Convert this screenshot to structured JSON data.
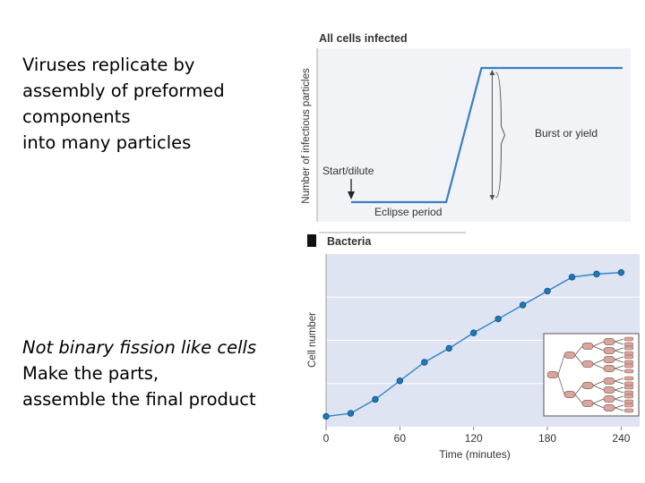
{
  "slide": {
    "text_top": [
      "Viruses replicate by",
      "assembly of preformed",
      "components",
      "into many particles"
    ],
    "text_bottom_italic": "Not binary fission like cells",
    "text_bottom": [
      "Make the parts,",
      "assemble the final product"
    ]
  },
  "chart_data": [
    {
      "type": "line",
      "title": "All cells infected",
      "ylabel": "Number of infectious particles",
      "annotations": {
        "start": "Start/dilute",
        "eclipse": "Eclipse period",
        "burst": "Burst or yield"
      },
      "series": [
        {
          "x": [
            0,
            0.35,
            0.48,
            1.0
          ],
          "y": [
            0,
            0,
            1,
            1
          ]
        }
      ],
      "xlim": [
        0,
        1
      ],
      "ylim": [
        -0.2,
        1.2
      ],
      "colors": {
        "line": "#3a7fc4",
        "background": "#f2f3f7",
        "annotation": "#4a4a4a"
      }
    },
    {
      "type": "line",
      "title": "Bacteria",
      "xlabel": "Time (minutes)",
      "ylabel": "Cell number",
      "x_ticks": [
        "0",
        "60",
        "120",
        "180",
        "240"
      ],
      "xlim": [
        0,
        255
      ],
      "ylim": [
        0,
        1
      ],
      "series": [
        {
          "x": [
            0,
            20,
            40,
            60,
            80,
            100,
            120,
            140,
            160,
            180,
            200,
            220,
            240
          ],
          "y": [
            0.02,
            0.04,
            0.13,
            0.25,
            0.37,
            0.46,
            0.56,
            0.65,
            0.74,
            0.83,
            0.92,
            0.94,
            0.95
          ]
        }
      ],
      "colors": {
        "line": "#2f82c8",
        "marker": "#1f78b4",
        "background": "#dfe4f2",
        "grid": "#ffffff"
      }
    }
  ]
}
